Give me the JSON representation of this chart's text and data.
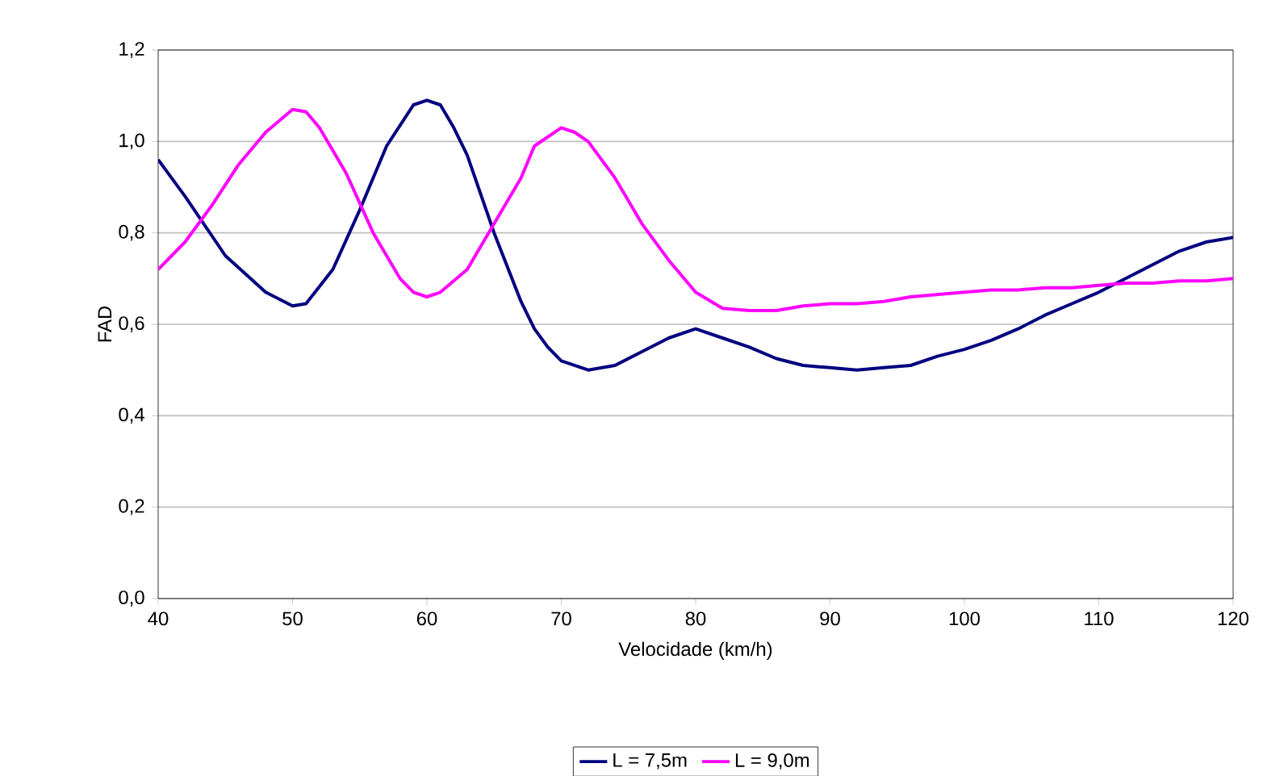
{
  "chart_data": {
    "type": "line",
    "xlabel": "Velocidade (km/h)",
    "ylabel": "FAD",
    "xlim": [
      40,
      120
    ],
    "xticks": [
      40,
      50,
      60,
      70,
      80,
      90,
      100,
      110,
      120
    ],
    "ylim": [
      0,
      1.2
    ],
    "yticks": [
      {
        "value": 0,
        "label": "0,0"
      },
      {
        "value": 0.2,
        "label": "0,2"
      },
      {
        "value": 0.4,
        "label": "0,4"
      },
      {
        "value": 0.6,
        "label": "0,6"
      },
      {
        "value": 0.8,
        "label": "0,8"
      },
      {
        "value": 1.0,
        "label": "1,0"
      },
      {
        "value": 1.2,
        "label": "1,2"
      }
    ],
    "grid": "y",
    "legend": "bottom",
    "marker": "none",
    "line_style": "solid",
    "series": [
      {
        "name": "L = 7,5m",
        "color": "#000080",
        "x": [
          40,
          42,
          45,
          48,
          50,
          51,
          53,
          55,
          57,
          59,
          60,
          61,
          62,
          63,
          65,
          67,
          68,
          69,
          70,
          72,
          74,
          76,
          78,
          80,
          82,
          84,
          86,
          88,
          90,
          92,
          94,
          96,
          98,
          100,
          102,
          104,
          106,
          108,
          110,
          112,
          114,
          116,
          118,
          120
        ],
        "values": [
          0.96,
          0.88,
          0.75,
          0.67,
          0.64,
          0.645,
          0.72,
          0.85,
          0.99,
          1.08,
          1.09,
          1.08,
          1.03,
          0.97,
          0.8,
          0.65,
          0.59,
          0.55,
          0.52,
          0.5,
          0.51,
          0.54,
          0.57,
          0.59,
          0.57,
          0.55,
          0.525,
          0.51,
          0.505,
          0.5,
          0.505,
          0.51,
          0.53,
          0.545,
          0.565,
          0.59,
          0.62,
          0.645,
          0.67,
          0.7,
          0.73,
          0.76,
          0.78,
          0.79
        ]
      },
      {
        "name": "L = 9,0m",
        "color": "#ff00ff",
        "x": [
          40,
          42,
          44,
          46,
          48,
          50,
          51,
          52,
          54,
          56,
          58,
          59,
          60,
          61,
          63,
          65,
          67,
          68,
          70,
          71,
          72,
          74,
          76,
          78,
          80,
          82,
          84,
          86,
          88,
          90,
          92,
          94,
          96,
          98,
          100,
          102,
          104,
          106,
          108,
          110,
          112,
          114,
          116,
          118,
          120
        ],
        "values": [
          0.72,
          0.78,
          0.86,
          0.95,
          1.02,
          1.07,
          1.065,
          1.03,
          0.93,
          0.8,
          0.7,
          0.67,
          0.66,
          0.67,
          0.72,
          0.82,
          0.92,
          0.99,
          1.03,
          1.02,
          1.0,
          0.92,
          0.82,
          0.74,
          0.67,
          0.635,
          0.63,
          0.63,
          0.64,
          0.645,
          0.645,
          0.65,
          0.66,
          0.665,
          0.67,
          0.675,
          0.675,
          0.68,
          0.68,
          0.685,
          0.69,
          0.69,
          0.695,
          0.695,
          0.7
        ]
      }
    ]
  }
}
